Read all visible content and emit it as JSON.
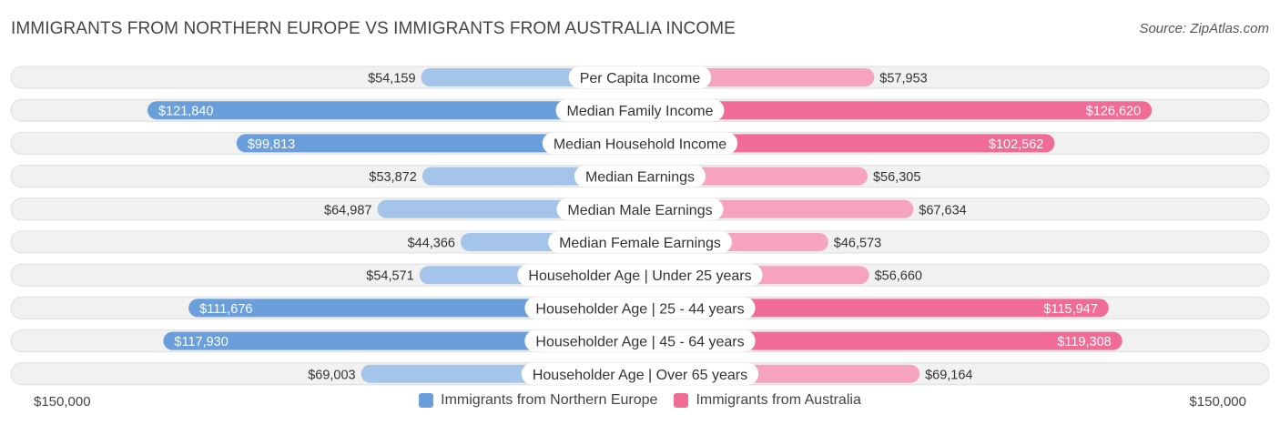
{
  "header": {
    "title": "IMMIGRANTS FROM NORTHERN EUROPE VS IMMIGRANTS FROM AUSTRALIA INCOME",
    "source": "Source: ZipAtlas.com"
  },
  "axis": {
    "left_label": "$150,000",
    "right_label": "$150,000"
  },
  "legend": {
    "left": "Immigrants from Northern Europe",
    "right": "Immigrants from Australia"
  },
  "colors": {
    "left_strong": "#6a9fdc",
    "left_light": "#a4c4ea",
    "right_strong": "#f06b95",
    "right_light": "#f6a3bf",
    "track": "#f1f1f1",
    "track_border": "#dedede"
  },
  "chart_data": {
    "type": "bar",
    "orientation": "diverging-horizontal",
    "title": "IMMIGRANTS FROM NORTHERN EUROPE VS IMMIGRANTS FROM AUSTRALIA INCOME",
    "xlim": [
      0,
      150000
    ],
    "categories": [
      "Per Capita Income",
      "Median Family Income",
      "Median Household Income",
      "Median Earnings",
      "Median Male Earnings",
      "Median Female Earnings",
      "Householder Age | Under 25 years",
      "Householder Age | 25 - 44 years",
      "Householder Age | 45 - 64 years",
      "Householder Age | Over 65 years"
    ],
    "series": [
      {
        "name": "Immigrants from Northern Europe",
        "values": [
          54159,
          121840,
          99813,
          53872,
          64987,
          44366,
          54571,
          111676,
          117930,
          69003
        ],
        "labels": [
          "$54,159",
          "$121,840",
          "$99,813",
          "$53,872",
          "$64,987",
          "$44,366",
          "$54,571",
          "$111,676",
          "$117,930",
          "$69,003"
        ]
      },
      {
        "name": "Immigrants from Australia",
        "values": [
          57953,
          126620,
          102562,
          56305,
          67634,
          46573,
          56660,
          115947,
          119308,
          69164
        ],
        "labels": [
          "$57,953",
          "$126,620",
          "$102,562",
          "$56,305",
          "$67,634",
          "$46,573",
          "$56,660",
          "$115,947",
          "$119,308",
          "$69,164"
        ]
      }
    ]
  }
}
